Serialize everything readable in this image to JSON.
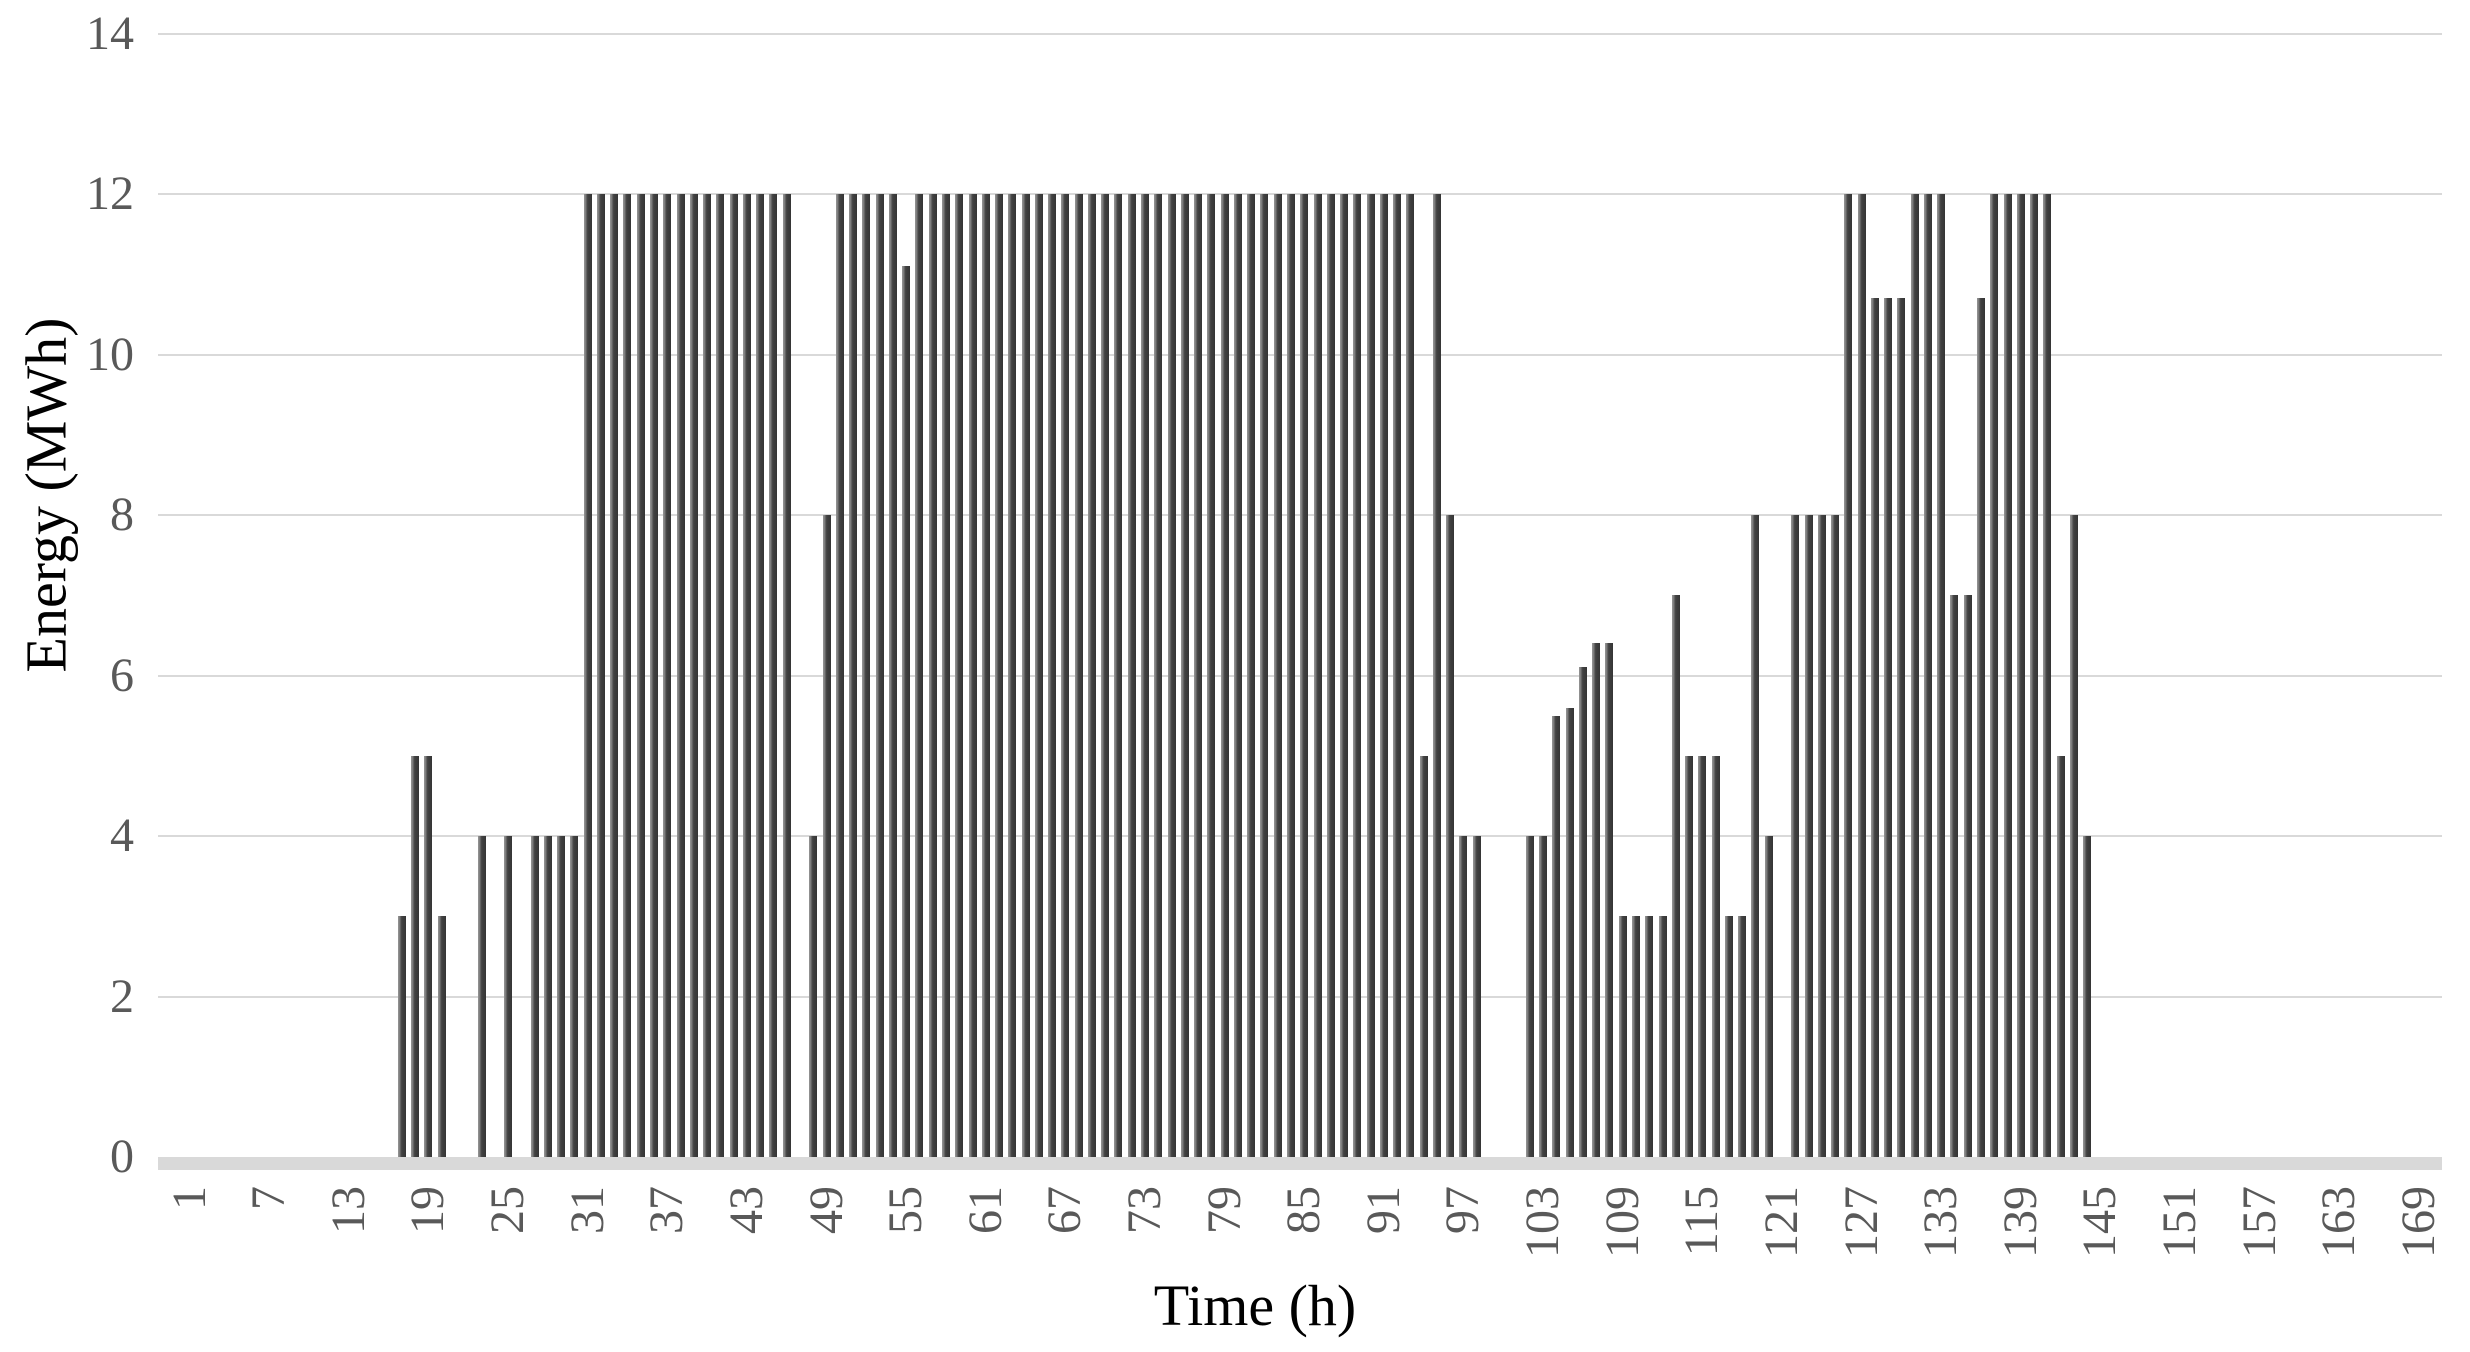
{
  "page": {
    "background": "#ffffff"
  },
  "chart_data": {
    "type": "bar",
    "title": "",
    "xlabel": "Time (h)",
    "ylabel": "Energy (MWh)",
    "ylim": [
      0,
      14
    ],
    "y_ticks": [
      0,
      2,
      4,
      6,
      8,
      10,
      12,
      14
    ],
    "x_tick_start": 1,
    "x_tick_step": 6,
    "x_tick_end": 169,
    "x_start": 1,
    "grid": "horizontal",
    "legend_position": "none",
    "bar_color": "#3f3f3f",
    "bar_highlight_color": "#8f8f8f",
    "gridline_color": "#d9d9d9",
    "axis_line_color": "#d9d9d9",
    "tick_label_color": "#595959",
    "axis_title_color": "#000000",
    "values": [
      0,
      0,
      0,
      0,
      0,
      0,
      0,
      0,
      0,
      0,
      0,
      0,
      0,
      0,
      0,
      0,
      3,
      5,
      5,
      3,
      0,
      0,
      4,
      0,
      4,
      0,
      4,
      4,
      4,
      4,
      12,
      12,
      12,
      12,
      12,
      12,
      12,
      12,
      12,
      12,
      12,
      12,
      12,
      12,
      12,
      12,
      0,
      4,
      8,
      12,
      12,
      12,
      12,
      12,
      11.1,
      12,
      12,
      12,
      12,
      12,
      12,
      12,
      12,
      12,
      12,
      12,
      12,
      12,
      12,
      12,
      12,
      12,
      12,
      12,
      12,
      12,
      12,
      12,
      12,
      12,
      12,
      12,
      12,
      12,
      12,
      12,
      12,
      12,
      12,
      12,
      12,
      12,
      12,
      5,
      12,
      8,
      4,
      4,
      0,
      0,
      0,
      4,
      4,
      5.5,
      5.6,
      6.1,
      6.4,
      6.4,
      3,
      3,
      3,
      3,
      7,
      5,
      5,
      5,
      3,
      3,
      8,
      4,
      0,
      8,
      8,
      8,
      8,
      12,
      12,
      10.7,
      10.7,
      10.7,
      12,
      12,
      12,
      7,
      7,
      10.7,
      12,
      12,
      12,
      12,
      12,
      5,
      8,
      4,
      0,
      0,
      0,
      0,
      0,
      0,
      0,
      0,
      0,
      0,
      0,
      0,
      0,
      0,
      0,
      0,
      0,
      0,
      0,
      0,
      0,
      0,
      0,
      0
    ]
  }
}
